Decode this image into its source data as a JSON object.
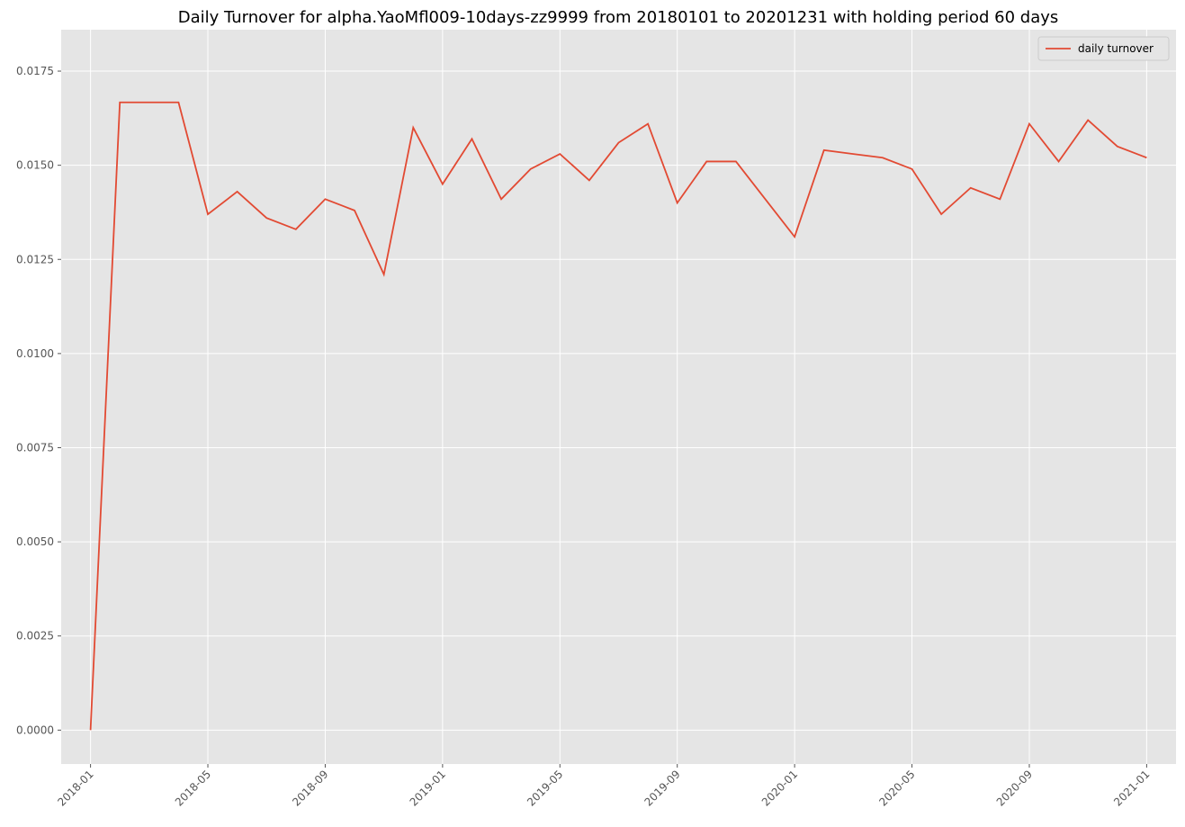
{
  "chart_data": {
    "type": "line",
    "title": "Daily Turnover for alpha.YaoMfl009-10days-zz9999 from 20180101 to 20201231 with holding period 60 days",
    "x": [
      "2018-01",
      "2018-02",
      "2018-03",
      "2018-04",
      "2018-05",
      "2018-06",
      "2018-07",
      "2018-08",
      "2018-09",
      "2018-10",
      "2018-11",
      "2018-12",
      "2019-01",
      "2019-02",
      "2019-03",
      "2019-04",
      "2019-05",
      "2019-06",
      "2019-07",
      "2019-08",
      "2019-09",
      "2019-10",
      "2019-11",
      "2019-12",
      "2020-01",
      "2020-02",
      "2020-03",
      "2020-04",
      "2020-05",
      "2020-06",
      "2020-07",
      "2020-08",
      "2020-09",
      "2020-10",
      "2020-11",
      "2020-12",
      "2021-01"
    ],
    "series": [
      {
        "name": "daily turnover",
        "color": "#e24a33",
        "values": [
          0,
          0.01667,
          0.01667,
          0.01667,
          0.0137,
          0.0143,
          0.0136,
          0.0133,
          0.0141,
          0.0138,
          0.0121,
          0.016,
          0.0145,
          0.0157,
          0.0141,
          0.0149,
          0.0153,
          0.0146,
          0.0156,
          0.0161,
          0.014,
          0.0151,
          0.0151,
          0.0141,
          0.0131,
          0.0154,
          0.0153,
          0.0152,
          0.0149,
          0.0137,
          0.0144,
          0.0141,
          0.0161,
          0.0151,
          0.0162,
          0.0155,
          0.0152
        ]
      }
    ],
    "xlim": [
      "2017-12",
      "2021-02"
    ],
    "xticks": [
      "2018-01",
      "2018-05",
      "2018-09",
      "2019-01",
      "2019-05",
      "2019-09",
      "2020-01",
      "2020-05",
      "2020-09",
      "2021-01"
    ],
    "ylim": [
      -0.0009,
      0.0186
    ],
    "yticks": [
      {
        "value": 0,
        "label": "0.0000"
      },
      {
        "value": 0.0025,
        "label": "0.0025"
      },
      {
        "value": 0.005,
        "label": "0.0050"
      },
      {
        "value": 0.0075,
        "label": "0.0075"
      },
      {
        "value": 0.01,
        "label": "0.0100"
      },
      {
        "value": 0.0125,
        "label": "0.0125"
      },
      {
        "value": 0.015,
        "label": "0.0150"
      },
      {
        "value": 0.0175,
        "label": "0.0175"
      }
    ],
    "grid": true,
    "legend": "upper right"
  }
}
